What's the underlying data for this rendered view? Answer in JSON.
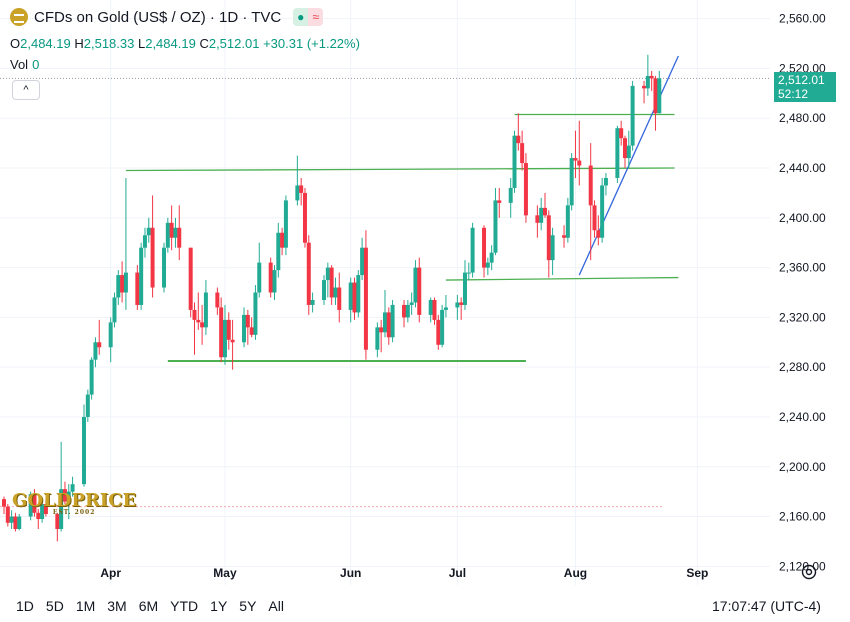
{
  "header": {
    "title": "CFDs on Gold (US$ / OZ) · 1D · TVC",
    "status_open": "●",
    "status_wave": "≈"
  },
  "ohlc": {
    "o_label": "O",
    "o": "2,484.19",
    "h_label": "H",
    "h": "2,518.33",
    "l_label": "L",
    "l": "2,484.19",
    "c_label": "C",
    "c": "2,512.01",
    "change": "+30.31 (+1.22%)"
  },
  "vol": {
    "label": "Vol",
    "value": "0"
  },
  "collapse_icon": "^",
  "price_tag": {
    "price": "2,512.01",
    "countdown": "52:12"
  },
  "watermark": {
    "brand": "GOLDPRICE",
    "tagline": "EST. 2002"
  },
  "timeframes": [
    "1D",
    "5D",
    "1M",
    "3M",
    "6M",
    "YTD",
    "1Y",
    "5Y",
    "All"
  ],
  "clock": "17:07:47 (UTC-4)",
  "colors": {
    "up": "#22ab94",
    "down": "#f23645",
    "trend": "#3366dd",
    "level": "#4caf50",
    "grid": "#f0f3fa"
  },
  "chart_data": {
    "type": "candlestick",
    "title": "",
    "xlabel": "",
    "ylabel": "",
    "ylim": [
      2105,
      2575
    ],
    "y_ticks": [
      2560,
      2520,
      2480,
      2440,
      2400,
      2360,
      2320,
      2280,
      2240,
      2200,
      2160,
      2120
    ],
    "y_tick_labels": [
      "2,560.00",
      "2,520.00",
      "2,480.00",
      "2,440.00",
      "2,400.00",
      "2,360.00",
      "2,320.00",
      "2,280.00",
      "2,240.00",
      "2,200.00",
      "2,160.00",
      "2,120.00"
    ],
    "x_ticks": [
      {
        "label": "Apr",
        "date": "2024-04-01"
      },
      {
        "label": "May",
        "date": "2024-05-01"
      },
      {
        "label": "Jun",
        "date": "2024-06-03"
      },
      {
        "label": "Jul",
        "date": "2024-07-01"
      },
      {
        "label": "Aug",
        "date": "2024-08-01"
      },
      {
        "label": "Sep",
        "date": "2024-09-02"
      }
    ],
    "x_range": [
      "2024-03-04",
      "2024-09-04"
    ],
    "candles": [
      {
        "date": "2024-03-04",
        "o": 2174,
        "h": 2176,
        "l": 2162,
        "c": 2168
      },
      {
        "date": "2024-03-05",
        "o": 2168,
        "h": 2170,
        "l": 2152,
        "c": 2155
      },
      {
        "date": "2024-03-06",
        "o": 2155,
        "h": 2165,
        "l": 2150,
        "c": 2160
      },
      {
        "date": "2024-03-07",
        "o": 2160,
        "h": 2163,
        "l": 2148,
        "c": 2150
      },
      {
        "date": "2024-03-08",
        "o": 2150,
        "h": 2162,
        "l": 2149,
        "c": 2160
      },
      {
        "date": "2024-03-11",
        "o": 2160,
        "h": 2180,
        "l": 2157,
        "c": 2178
      },
      {
        "date": "2024-03-12",
        "o": 2178,
        "h": 2182,
        "l": 2160,
        "c": 2163
      },
      {
        "date": "2024-03-13",
        "o": 2163,
        "h": 2166,
        "l": 2150,
        "c": 2158
      },
      {
        "date": "2024-03-14",
        "o": 2158,
        "h": 2172,
        "l": 2155,
        "c": 2170
      },
      {
        "date": "2024-03-15",
        "o": 2170,
        "h": 2174,
        "l": 2160,
        "c": 2162
      },
      {
        "date": "2024-03-18",
        "o": 2162,
        "h": 2163,
        "l": 2140,
        "c": 2150
      },
      {
        "date": "2024-03-19",
        "o": 2150,
        "h": 2220,
        "l": 2148,
        "c": 2182
      },
      {
        "date": "2024-03-20",
        "o": 2182,
        "h": 2188,
        "l": 2170,
        "c": 2172
      },
      {
        "date": "2024-03-21",
        "o": 2172,
        "h": 2186,
        "l": 2158,
        "c": 2180
      },
      {
        "date": "2024-03-22",
        "o": 2180,
        "h": 2192,
        "l": 2176,
        "c": 2186
      },
      {
        "date": "2024-03-25",
        "o": 2186,
        "h": 2250,
        "l": 2184,
        "c": 2240
      },
      {
        "date": "2024-03-26",
        "o": 2240,
        "h": 2262,
        "l": 2236,
        "c": 2258
      },
      {
        "date": "2024-03-27",
        "o": 2258,
        "h": 2288,
        "l": 2254,
        "c": 2286
      },
      {
        "date": "2024-03-28",
        "o": 2286,
        "h": 2304,
        "l": 2280,
        "c": 2300
      },
      {
        "date": "2024-03-29",
        "o": 2300,
        "h": 2318,
        "l": 2290,
        "c": 2296
      },
      {
        "date": "2024-04-01",
        "o": 2296,
        "h": 2320,
        "l": 2284,
        "c": 2316
      },
      {
        "date": "2024-04-02",
        "o": 2316,
        "h": 2340,
        "l": 2312,
        "c": 2336
      },
      {
        "date": "2024-04-03",
        "o": 2336,
        "h": 2358,
        "l": 2330,
        "c": 2354
      },
      {
        "date": "2024-04-04",
        "o": 2354,
        "h": 2365,
        "l": 2332,
        "c": 2340
      },
      {
        "date": "2024-04-05",
        "o": 2340,
        "h": 2432,
        "l": 2326,
        "c": 2356
      },
      {
        "date": "2024-04-08",
        "o": 2356,
        "h": 2362,
        "l": 2326,
        "c": 2330
      },
      {
        "date": "2024-04-09",
        "o": 2330,
        "h": 2380,
        "l": 2326,
        "c": 2376
      },
      {
        "date": "2024-04-10",
        "o": 2376,
        "h": 2392,
        "l": 2368,
        "c": 2386
      },
      {
        "date": "2024-04-11",
        "o": 2386,
        "h": 2400,
        "l": 2380,
        "c": 2392
      },
      {
        "date": "2024-04-12",
        "o": 2392,
        "h": 2418,
        "l": 2336,
        "c": 2344
      },
      {
        "date": "2024-04-15",
        "o": 2344,
        "h": 2380,
        "l": 2340,
        "c": 2376
      },
      {
        "date": "2024-04-16",
        "o": 2376,
        "h": 2400,
        "l": 2372,
        "c": 2396
      },
      {
        "date": "2024-04-17",
        "o": 2396,
        "h": 2410,
        "l": 2374,
        "c": 2384
      },
      {
        "date": "2024-04-18",
        "o": 2384,
        "h": 2400,
        "l": 2376,
        "c": 2392
      },
      {
        "date": "2024-04-19",
        "o": 2392,
        "h": 2410,
        "l": 2366,
        "c": 2376
      },
      {
        "date": "2024-04-22",
        "o": 2376,
        "h": 2376,
        "l": 2320,
        "c": 2326
      },
      {
        "date": "2024-04-23",
        "o": 2326,
        "h": 2332,
        "l": 2290,
        "c": 2318
      },
      {
        "date": "2024-04-24",
        "o": 2318,
        "h": 2340,
        "l": 2310,
        "c": 2316
      },
      {
        "date": "2024-04-25",
        "o": 2316,
        "h": 2330,
        "l": 2298,
        "c": 2312
      },
      {
        "date": "2024-04-26",
        "o": 2312,
        "h": 2350,
        "l": 2306,
        "c": 2340
      },
      {
        "date": "2024-04-29",
        "o": 2340,
        "h": 2344,
        "l": 2322,
        "c": 2328
      },
      {
        "date": "2024-04-30",
        "o": 2328,
        "h": 2336,
        "l": 2284,
        "c": 2288
      },
      {
        "date": "2024-05-01",
        "o": 2288,
        "h": 2330,
        "l": 2282,
        "c": 2318
      },
      {
        "date": "2024-05-02",
        "o": 2318,
        "h": 2324,
        "l": 2294,
        "c": 2302
      },
      {
        "date": "2024-05-03",
        "o": 2302,
        "h": 2318,
        "l": 2278,
        "c": 2300
      },
      {
        "date": "2024-05-06",
        "o": 2300,
        "h": 2328,
        "l": 2296,
        "c": 2322
      },
      {
        "date": "2024-05-07",
        "o": 2322,
        "h": 2326,
        "l": 2298,
        "c": 2312
      },
      {
        "date": "2024-05-08",
        "o": 2312,
        "h": 2320,
        "l": 2304,
        "c": 2306
      },
      {
        "date": "2024-05-09",
        "o": 2306,
        "h": 2346,
        "l": 2302,
        "c": 2340
      },
      {
        "date": "2024-05-10",
        "o": 2340,
        "h": 2380,
        "l": 2336,
        "c": 2364
      },
      {
        "date": "2024-05-13",
        "o": 2364,
        "h": 2368,
        "l": 2336,
        "c": 2340
      },
      {
        "date": "2024-05-14",
        "o": 2340,
        "h": 2362,
        "l": 2334,
        "c": 2358
      },
      {
        "date": "2024-05-15",
        "o": 2358,
        "h": 2396,
        "l": 2352,
        "c": 2388
      },
      {
        "date": "2024-05-16",
        "o": 2388,
        "h": 2392,
        "l": 2370,
        "c": 2376
      },
      {
        "date": "2024-05-17",
        "o": 2376,
        "h": 2418,
        "l": 2370,
        "c": 2414
      },
      {
        "date": "2024-05-20",
        "o": 2414,
        "h": 2450,
        "l": 2410,
        "c": 2426
      },
      {
        "date": "2024-05-21",
        "o": 2426,
        "h": 2432,
        "l": 2410,
        "c": 2420
      },
      {
        "date": "2024-05-22",
        "o": 2420,
        "h": 2424,
        "l": 2376,
        "c": 2380
      },
      {
        "date": "2024-05-23",
        "o": 2380,
        "h": 2386,
        "l": 2322,
        "c": 2330
      },
      {
        "date": "2024-05-24",
        "o": 2330,
        "h": 2340,
        "l": 2324,
        "c": 2334
      },
      {
        "date": "2024-05-27",
        "o": 2334,
        "h": 2354,
        "l": 2330,
        "c": 2350
      },
      {
        "date": "2024-05-28",
        "o": 2350,
        "h": 2364,
        "l": 2336,
        "c": 2360
      },
      {
        "date": "2024-05-29",
        "o": 2360,
        "h": 2362,
        "l": 2330,
        "c": 2336
      },
      {
        "date": "2024-05-30",
        "o": 2336,
        "h": 2352,
        "l": 2330,
        "c": 2344
      },
      {
        "date": "2024-05-31",
        "o": 2344,
        "h": 2356,
        "l": 2316,
        "c": 2326
      },
      {
        "date": "2024-06-03",
        "o": 2326,
        "h": 2352,
        "l": 2316,
        "c": 2348
      },
      {
        "date": "2024-06-04",
        "o": 2348,
        "h": 2352,
        "l": 2318,
        "c": 2324
      },
      {
        "date": "2024-06-05",
        "o": 2324,
        "h": 2358,
        "l": 2320,
        "c": 2354
      },
      {
        "date": "2024-06-06",
        "o": 2354,
        "h": 2384,
        "l": 2350,
        "c": 2376
      },
      {
        "date": "2024-06-07",
        "o": 2376,
        "h": 2390,
        "l": 2286,
        "c": 2294
      },
      {
        "date": "2024-06-10",
        "o": 2294,
        "h": 2316,
        "l": 2288,
        "c": 2312
      },
      {
        "date": "2024-06-11",
        "o": 2312,
        "h": 2318,
        "l": 2292,
        "c": 2308
      },
      {
        "date": "2024-06-12",
        "o": 2308,
        "h": 2342,
        "l": 2304,
        "c": 2324
      },
      {
        "date": "2024-06-13",
        "o": 2324,
        "h": 2328,
        "l": 2298,
        "c": 2304
      },
      {
        "date": "2024-06-14",
        "o": 2304,
        "h": 2334,
        "l": 2300,
        "c": 2330
      },
      {
        "date": "2024-06-17",
        "o": 2330,
        "h": 2334,
        "l": 2312,
        "c": 2320
      },
      {
        "date": "2024-06-18",
        "o": 2320,
        "h": 2334,
        "l": 2316,
        "c": 2330
      },
      {
        "date": "2024-06-19",
        "o": 2330,
        "h": 2340,
        "l": 2322,
        "c": 2332
      },
      {
        "date": "2024-06-20",
        "o": 2332,
        "h": 2366,
        "l": 2328,
        "c": 2360
      },
      {
        "date": "2024-06-21",
        "o": 2360,
        "h": 2368,
        "l": 2316,
        "c": 2322
      },
      {
        "date": "2024-06-24",
        "o": 2322,
        "h": 2336,
        "l": 2316,
        "c": 2334
      },
      {
        "date": "2024-06-25",
        "o": 2334,
        "h": 2336,
        "l": 2314,
        "c": 2318
      },
      {
        "date": "2024-06-26",
        "o": 2318,
        "h": 2322,
        "l": 2294,
        "c": 2298
      },
      {
        "date": "2024-06-27",
        "o": 2298,
        "h": 2330,
        "l": 2296,
        "c": 2326
      },
      {
        "date": "2024-06-28",
        "o": 2326,
        "h": 2338,
        "l": 2320,
        "c": 2328
      },
      {
        "date": "2024-07-01",
        "o": 2328,
        "h": 2338,
        "l": 2318,
        "c": 2332
      },
      {
        "date": "2024-07-02",
        "o": 2332,
        "h": 2336,
        "l": 2318,
        "c": 2330
      },
      {
        "date": "2024-07-03",
        "o": 2330,
        "h": 2366,
        "l": 2326,
        "c": 2356
      },
      {
        "date": "2024-07-04",
        "o": 2356,
        "h": 2364,
        "l": 2350,
        "c": 2356
      },
      {
        "date": "2024-07-05",
        "o": 2356,
        "h": 2396,
        "l": 2352,
        "c": 2392
      },
      {
        "date": "2024-07-08",
        "o": 2392,
        "h": 2394,
        "l": 2352,
        "c": 2360
      },
      {
        "date": "2024-07-09",
        "o": 2360,
        "h": 2368,
        "l": 2354,
        "c": 2364
      },
      {
        "date": "2024-07-10",
        "o": 2364,
        "h": 2378,
        "l": 2358,
        "c": 2372
      },
      {
        "date": "2024-07-11",
        "o": 2372,
        "h": 2424,
        "l": 2370,
        "c": 2414
      },
      {
        "date": "2024-07-12",
        "o": 2414,
        "h": 2424,
        "l": 2400,
        "c": 2412
      },
      {
        "date": "2024-07-15",
        "o": 2412,
        "h": 2432,
        "l": 2400,
        "c": 2424
      },
      {
        "date": "2024-07-16",
        "o": 2424,
        "h": 2470,
        "l": 2420,
        "c": 2466
      },
      {
        "date": "2024-07-17",
        "o": 2466,
        "h": 2484,
        "l": 2454,
        "c": 2460
      },
      {
        "date": "2024-07-18",
        "o": 2460,
        "h": 2470,
        "l": 2438,
        "c": 2444
      },
      {
        "date": "2024-07-19",
        "o": 2444,
        "h": 2452,
        "l": 2396,
        "c": 2402
      },
      {
        "date": "2024-07-22",
        "o": 2402,
        "h": 2410,
        "l": 2384,
        "c": 2396
      },
      {
        "date": "2024-07-23",
        "o": 2396,
        "h": 2416,
        "l": 2390,
        "c": 2408
      },
      {
        "date": "2024-07-24",
        "o": 2408,
        "h": 2420,
        "l": 2400,
        "c": 2402
      },
      {
        "date": "2024-07-25",
        "o": 2402,
        "h": 2406,
        "l": 2352,
        "c": 2366
      },
      {
        "date": "2024-07-26",
        "o": 2366,
        "h": 2392,
        "l": 2354,
        "c": 2386
      },
      {
        "date": "2024-07-29",
        "o": 2386,
        "h": 2394,
        "l": 2376,
        "c": 2384
      },
      {
        "date": "2024-07-30",
        "o": 2384,
        "h": 2416,
        "l": 2380,
        "c": 2410
      },
      {
        "date": "2024-07-31",
        "o": 2410,
        "h": 2452,
        "l": 2406,
        "c": 2448
      },
      {
        "date": "2024-08-01",
        "o": 2448,
        "h": 2470,
        "l": 2432,
        "c": 2446
      },
      {
        "date": "2024-08-02",
        "o": 2446,
        "h": 2478,
        "l": 2426,
        "c": 2442
      },
      {
        "date": "2024-08-05",
        "o": 2442,
        "h": 2460,
        "l": 2366,
        "c": 2410
      },
      {
        "date": "2024-08-06",
        "o": 2410,
        "h": 2414,
        "l": 2384,
        "c": 2390
      },
      {
        "date": "2024-08-07",
        "o": 2390,
        "h": 2402,
        "l": 2378,
        "c": 2384
      },
      {
        "date": "2024-08-08",
        "o": 2384,
        "h": 2432,
        "l": 2380,
        "c": 2426
      },
      {
        "date": "2024-08-09",
        "o": 2426,
        "h": 2436,
        "l": 2418,
        "c": 2432
      },
      {
        "date": "2024-08-12",
        "o": 2432,
        "h": 2474,
        "l": 2428,
        "c": 2472
      },
      {
        "date": "2024-08-13",
        "o": 2472,
        "h": 2478,
        "l": 2458,
        "c": 2464
      },
      {
        "date": "2024-08-14",
        "o": 2464,
        "h": 2466,
        "l": 2440,
        "c": 2448
      },
      {
        "date": "2024-08-15",
        "o": 2448,
        "h": 2470,
        "l": 2440,
        "c": 2458
      },
      {
        "date": "2024-08-16",
        "o": 2458,
        "h": 2510,
        "l": 2454,
        "c": 2506
      },
      {
        "date": "2024-08-19",
        "o": 2506,
        "h": 2510,
        "l": 2492,
        "c": 2504
      },
      {
        "date": "2024-08-20",
        "o": 2504,
        "h": 2531,
        "l": 2498,
        "c": 2514
      },
      {
        "date": "2024-08-21",
        "o": 2514,
        "h": 2518,
        "l": 2502,
        "c": 2512
      },
      {
        "date": "2024-08-22",
        "o": 2512,
        "h": 2514,
        "l": 2470,
        "c": 2484
      },
      {
        "date": "2024-08-23",
        "o": 2484,
        "h": 2518,
        "l": 2484,
        "c": 2512
      }
    ],
    "lines": [
      {
        "name": "level-2440",
        "kind": "horizontal",
        "x0": "2024-04-05",
        "x1": "2024-08-27",
        "y0": 2438,
        "y1": 2440
      },
      {
        "name": "level-2483",
        "kind": "horizontal",
        "x0": "2024-07-16",
        "x1": "2024-08-27",
        "y0": 2483,
        "y1": 2483
      },
      {
        "name": "level-2352",
        "kind": "horizontal",
        "x0": "2024-06-28",
        "x1": "2024-08-28",
        "y0": 2350,
        "y1": 2352
      },
      {
        "name": "level-2285",
        "kind": "horizontal",
        "x0": "2024-04-16",
        "x1": "2024-07-19",
        "y0": 2285,
        "y1": 2285
      },
      {
        "name": "trendline",
        "kind": "trend",
        "x0": "2024-08-02",
        "x1": "2024-08-28",
        "y0": 2354,
        "y1": 2530
      }
    ],
    "last_price": 2512.01,
    "dotted_ref": 2168
  }
}
